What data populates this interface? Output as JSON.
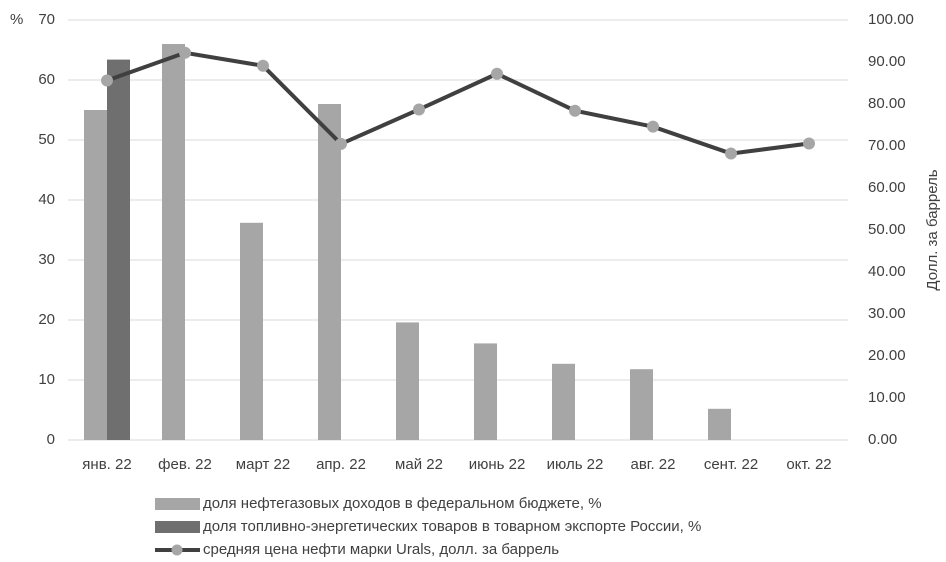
{
  "chart_data": {
    "type": "bar_line",
    "y_label": "%",
    "y2_label": "Долл. за баррель",
    "categories": [
      "янв. 22",
      "фев. 22",
      "март 22",
      "апр. 22",
      "май 22",
      "июнь 22",
      "июль 22",
      "авг. 22",
      "сент. 22",
      "окт. 22"
    ],
    "series": [
      {
        "name": "доля нефтегазовых доходов в федеральном бюджете, %",
        "type": "bar",
        "color": "#a6a6a6",
        "values": [
          55,
          66,
          36.2,
          56,
          19.6,
          16.1,
          12.7,
          11.8,
          5.2,
          null
        ]
      },
      {
        "name": "доля топливно-энергетических товаров в товарном экспорте России, %",
        "type": "bar",
        "color": "#6f6f6f",
        "values": [
          63.4,
          null,
          null,
          null,
          null,
          null,
          null,
          null,
          null,
          null
        ]
      },
      {
        "name": "средняя цена нефти марки Urals, долл. за баррель",
        "type": "line",
        "axis": "y2",
        "color": "#404040",
        "marker_color": "#a6a6a6",
        "values": [
          85.6,
          92.2,
          89.1,
          70.5,
          78.7,
          87.2,
          78.4,
          74.6,
          68.2,
          70.6
        ]
      }
    ],
    "ylim": [
      0,
      70
    ],
    "yticks": [
      0,
      10,
      20,
      30,
      40,
      50,
      60,
      70
    ],
    "y2lim": [
      0,
      100
    ],
    "y2ticks": [
      {
        "value": 0,
        "label": "0.00"
      },
      {
        "value": 10,
        "label": "10.00"
      },
      {
        "value": 20,
        "label": "20.00"
      },
      {
        "value": 30,
        "label": "30.00"
      },
      {
        "value": 40,
        "label": "40.00"
      },
      {
        "value": 50,
        "label": "50.00"
      },
      {
        "value": 60,
        "label": "60.00"
      },
      {
        "value": 70,
        "label": "70.00"
      },
      {
        "value": 80,
        "label": "80.00"
      },
      {
        "value": 90,
        "label": "90.00"
      },
      {
        "value": 100,
        "label": "100.00"
      }
    ],
    "grid": true,
    "legend": "bottom"
  }
}
